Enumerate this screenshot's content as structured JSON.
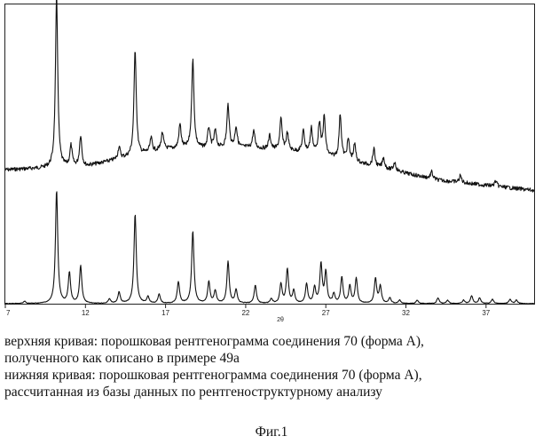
{
  "chart_data": {
    "type": "line",
    "title": "",
    "xlabel": "2θ",
    "ylabel": "",
    "xlim": [
      7,
      40
    ],
    "x_ticks": [
      7,
      12,
      17,
      22,
      27,
      32,
      37
    ],
    "grid": false,
    "series": [
      {
        "baseline": [
          [
            7,
            0.18
          ],
          [
            12,
            0.2
          ],
          [
            17,
            0.3
          ],
          [
            22,
            0.31
          ],
          [
            26,
            0.28
          ],
          [
            30,
            0.2
          ],
          [
            34,
            0.12
          ],
          [
            40,
            0.06
          ]
        ],
        "peaks": [
          [
            10.2,
            1.0
          ],
          [
            11.1,
            0.12
          ],
          [
            11.7,
            0.18
          ],
          [
            14.1,
            0.07
          ],
          [
            15.1,
            0.62
          ],
          [
            16.1,
            0.08
          ],
          [
            16.8,
            0.1
          ],
          [
            17.9,
            0.14
          ],
          [
            18.7,
            0.52
          ],
          [
            19.7,
            0.12
          ],
          [
            20.1,
            0.1
          ],
          [
            20.9,
            0.25
          ],
          [
            21.4,
            0.12
          ],
          [
            22.5,
            0.1
          ],
          [
            23.5,
            0.08
          ],
          [
            24.2,
            0.18
          ],
          [
            24.6,
            0.1
          ],
          [
            25.6,
            0.12
          ],
          [
            26.1,
            0.14
          ],
          [
            26.6,
            0.18
          ],
          [
            26.9,
            0.22
          ],
          [
            27.9,
            0.26
          ],
          [
            28.4,
            0.12
          ],
          [
            28.8,
            0.1
          ],
          [
            30.0,
            0.1
          ],
          [
            30.6,
            0.06
          ],
          [
            31.3,
            0.05
          ],
          [
            33.6,
            0.04
          ],
          [
            35.4,
            0.04
          ],
          [
            37.6,
            0.03
          ]
        ]
      },
      {
        "baseline": [
          [
            7,
            0.0
          ],
          [
            40,
            0.0
          ]
        ],
        "peaks": [
          [
            8.2,
            0.02
          ],
          [
            10.2,
            1.0
          ],
          [
            11.0,
            0.27
          ],
          [
            11.7,
            0.33
          ],
          [
            13.5,
            0.04
          ],
          [
            14.1,
            0.1
          ],
          [
            15.1,
            0.79
          ],
          [
            15.9,
            0.06
          ],
          [
            16.6,
            0.08
          ],
          [
            17.8,
            0.19
          ],
          [
            18.7,
            0.64
          ],
          [
            19.7,
            0.19
          ],
          [
            20.1,
            0.11
          ],
          [
            20.9,
            0.37
          ],
          [
            21.4,
            0.12
          ],
          [
            22.6,
            0.16
          ],
          [
            23.6,
            0.04
          ],
          [
            24.2,
            0.17
          ],
          [
            24.6,
            0.3
          ],
          [
            25.0,
            0.11
          ],
          [
            25.8,
            0.17
          ],
          [
            26.3,
            0.14
          ],
          [
            26.7,
            0.34
          ],
          [
            27.0,
            0.27
          ],
          [
            27.5,
            0.08
          ],
          [
            28.0,
            0.23
          ],
          [
            28.5,
            0.15
          ],
          [
            28.9,
            0.22
          ],
          [
            30.1,
            0.22
          ],
          [
            30.4,
            0.15
          ],
          [
            31.0,
            0.05
          ],
          [
            31.6,
            0.03
          ],
          [
            32.7,
            0.03
          ],
          [
            34.0,
            0.05
          ],
          [
            34.6,
            0.03
          ],
          [
            35.6,
            0.03
          ],
          [
            36.1,
            0.07
          ],
          [
            36.6,
            0.05
          ],
          [
            37.4,
            0.04
          ],
          [
            38.5,
            0.04
          ],
          [
            38.9,
            0.03
          ]
        ]
      }
    ]
  },
  "caption": {
    "upper_line1": "верхняя кривая: порошковая рентгенограмма соединения 70 (форма А),",
    "upper_line2": "полученного как описано в примере 49а",
    "lower_line1": "нижняя кривая: порошковая рентгенограмма соединения 70 (форма А),",
    "lower_line2": "рассчитанная из базы данных по рентгеноструктурному анализу"
  },
  "figure_label": "Фиг.1"
}
